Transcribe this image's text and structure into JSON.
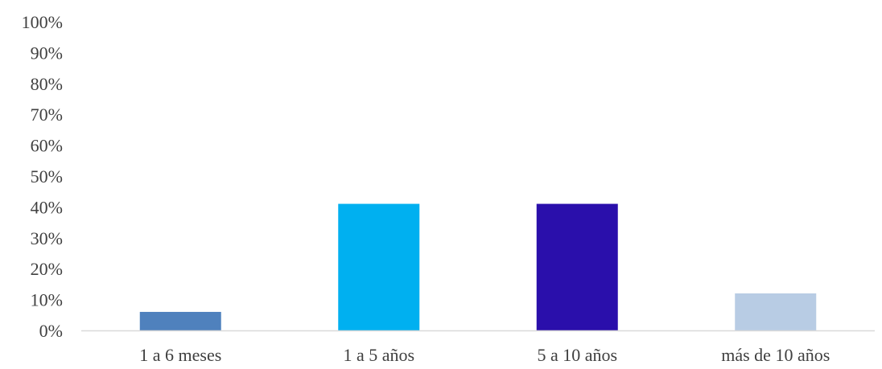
{
  "chart_data": {
    "type": "bar",
    "categories": [
      "1 a 6 meses",
      "1 a 5 años",
      "5 a 10 años",
      "más de 10 años"
    ],
    "values": [
      6,
      41,
      41,
      12
    ],
    "value_unit": "%",
    "ylim": [
      0,
      100
    ],
    "y_ticks": [
      "0%",
      "10%",
      "20%",
      "30%",
      "40%",
      "50%",
      "60%",
      "70%",
      "80%",
      "90%",
      "100%"
    ],
    "grid": false,
    "legend": "none",
    "colors": [
      "#4F81BD",
      "#00B0F0",
      "#2A0FAB",
      "#B8CCE4"
    ],
    "axis_color": "#D9D9D9"
  }
}
